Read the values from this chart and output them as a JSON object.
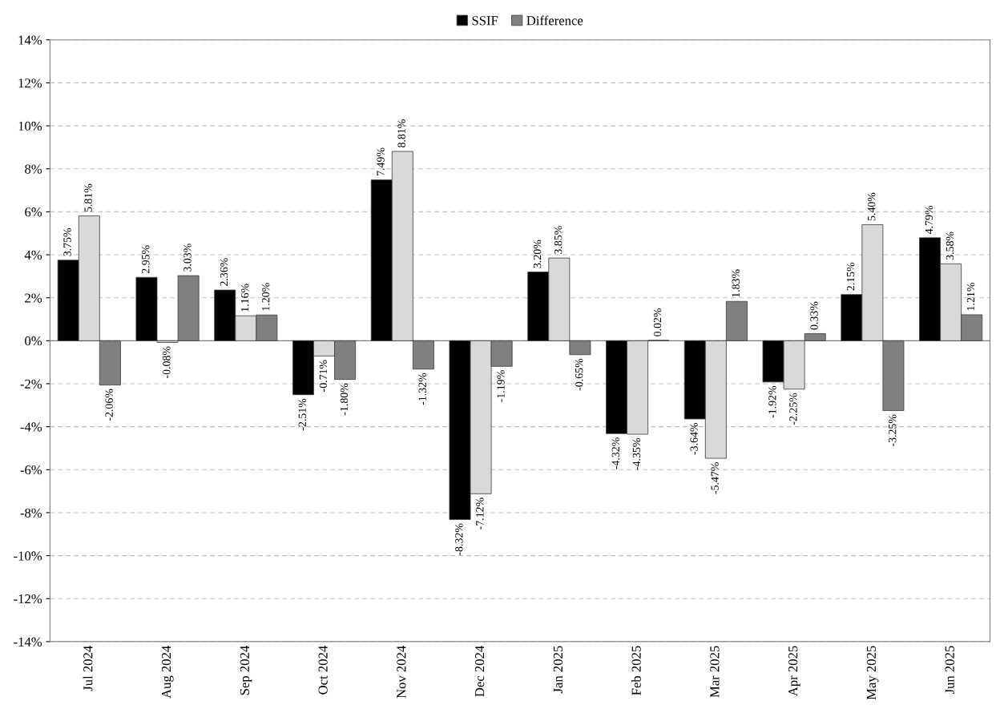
{
  "chart_data": {
    "type": "bar",
    "categories": [
      "Jul 2024",
      "Aug 2024",
      "Sep 2024",
      "Oct 2024",
      "Nov 2024",
      "Dec 2024",
      "Jan 2025",
      "Feb 2025",
      "Mar 2025",
      "Apr 2025",
      "May 2025",
      "Jun 2025"
    ],
    "series": [
      {
        "name": "SSIF",
        "color": "#000000",
        "values": [
          3.75,
          2.95,
          2.36,
          -2.51,
          7.49,
          -8.32,
          3.2,
          -4.32,
          -3.64,
          -1.92,
          2.15,
          4.79
        ],
        "value_labels": [
          "3.75%",
          "2.95%",
          "2.36%",
          "-2.51%",
          "7.49%",
          "-8.32%",
          "3.20%",
          "-4.32%",
          "-3.64%",
          "-1.92%",
          "2.15%",
          "4.79%"
        ]
      },
      {
        "color": "#d9d9d9",
        "values": [
          5.81,
          -0.08,
          1.16,
          -0.71,
          8.81,
          -7.12,
          3.85,
          -4.35,
          -5.47,
          -2.25,
          5.4,
          3.58
        ],
        "value_labels": [
          "5.81%",
          "-0.08%",
          "1.16%",
          "-0.71%",
          "8.81%",
          "-7.12%",
          "3.85%",
          "-4.35%",
          "-5.47%",
          "-2.25%",
          "5.40%",
          "3.58%"
        ]
      },
      {
        "name": "Difference",
        "color": "#808080",
        "values": [
          -2.06,
          3.03,
          1.2,
          -1.8,
          -1.32,
          -1.19,
          -0.65,
          0.02,
          1.83,
          0.33,
          -3.25,
          1.21
        ],
        "value_labels": [
          "-2.06%",
          "3.03%",
          "1.20%",
          "-1.80%",
          "-1.32%",
          "-1.19%",
          "-0.65%",
          "0.02%",
          "1.83%",
          "0.33%",
          "-3.25%",
          "1.21%"
        ]
      }
    ],
    "ylim": [
      -14,
      14
    ],
    "yticks": [
      {
        "value": -14,
        "label": "-14%"
      },
      {
        "value": -12,
        "label": "-12%"
      },
      {
        "value": -10,
        "label": "-10%"
      },
      {
        "value": -8,
        "label": "-8%"
      },
      {
        "value": -6,
        "label": "-6%"
      },
      {
        "value": -4,
        "label": "-4%"
      },
      {
        "value": -2,
        "label": "-2%"
      },
      {
        "value": 0,
        "label": "0%"
      },
      {
        "value": 2,
        "label": "2%"
      },
      {
        "value": 4,
        "label": "4%"
      },
      {
        "value": 6,
        "label": "6%"
      },
      {
        "value": 8,
        "label": "8%"
      },
      {
        "value": 10,
        "label": "10%"
      },
      {
        "value": 12,
        "label": "12%"
      },
      {
        "value": 14,
        "label": "14%"
      }
    ],
    "grid": "y",
    "legend": "top"
  }
}
